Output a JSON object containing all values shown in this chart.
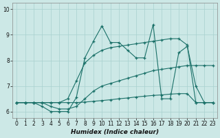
{
  "xlabel": "Humidex (Indice chaleur)",
  "xlim": [
    -0.5,
    23.5
  ],
  "ylim": [
    5.75,
    10.25
  ],
  "yticks": [
    6,
    7,
    8,
    9,
    10
  ],
  "xticks": [
    0,
    1,
    2,
    3,
    4,
    5,
    6,
    7,
    8,
    9,
    10,
    11,
    12,
    13,
    14,
    15,
    16,
    17,
    18,
    19,
    20,
    21,
    22,
    23
  ],
  "bg_color": "#cce8e6",
  "grid_color": "#a8d0ce",
  "line_color": "#1a7068",
  "series": [
    {
      "x": [
        0,
        1,
        2,
        3,
        4,
        5,
        6,
        7,
        8,
        9,
        10,
        11,
        12,
        13,
        14,
        15,
        16,
        17,
        18,
        19,
        20,
        21,
        22,
        23
      ],
      "y": [
        6.35,
        6.35,
        6.35,
        6.2,
        6.0,
        6.0,
        6.0,
        6.55,
        8.1,
        8.75,
        9.35,
        8.7,
        8.7,
        8.4,
        8.1,
        8.1,
        9.4,
        6.5,
        6.5,
        8.3,
        8.55,
        7.0,
        6.35,
        6.35
      ]
    },
    {
      "x": [
        0,
        1,
        2,
        3,
        4,
        5,
        6,
        7,
        8,
        9,
        10,
        11,
        12,
        13,
        14,
        15,
        16,
        17,
        18,
        19,
        20,
        21,
        22,
        23
      ],
      "y": [
        6.35,
        6.35,
        6.35,
        6.35,
        6.35,
        6.35,
        6.5,
        7.2,
        7.9,
        8.2,
        8.4,
        8.5,
        8.55,
        8.6,
        8.65,
        8.7,
        8.75,
        8.8,
        8.85,
        8.85,
        8.6,
        6.35,
        6.35,
        6.35
      ]
    },
    {
      "x": [
        0,
        1,
        2,
        3,
        4,
        5,
        6,
        7,
        8,
        9,
        10,
        11,
        12,
        13,
        14,
        15,
        16,
        17,
        18,
        19,
        20,
        21,
        22,
        23
      ],
      "y": [
        6.35,
        6.35,
        6.35,
        6.35,
        6.2,
        6.1,
        6.1,
        6.2,
        6.5,
        6.8,
        7.0,
        7.1,
        7.2,
        7.3,
        7.4,
        7.5,
        7.6,
        7.65,
        7.7,
        7.75,
        7.8,
        7.8,
        7.8,
        7.8
      ]
    },
    {
      "x": [
        0,
        1,
        2,
        3,
        4,
        5,
        6,
        7,
        8,
        9,
        10,
        11,
        12,
        13,
        14,
        15,
        16,
        17,
        18,
        19,
        20,
        21,
        22,
        23
      ],
      "y": [
        6.35,
        6.35,
        6.35,
        6.35,
        6.35,
        6.35,
        6.35,
        6.35,
        6.37,
        6.4,
        6.43,
        6.46,
        6.5,
        6.53,
        6.57,
        6.6,
        6.63,
        6.65,
        6.68,
        6.7,
        6.7,
        6.35,
        6.35,
        6.35
      ]
    }
  ]
}
